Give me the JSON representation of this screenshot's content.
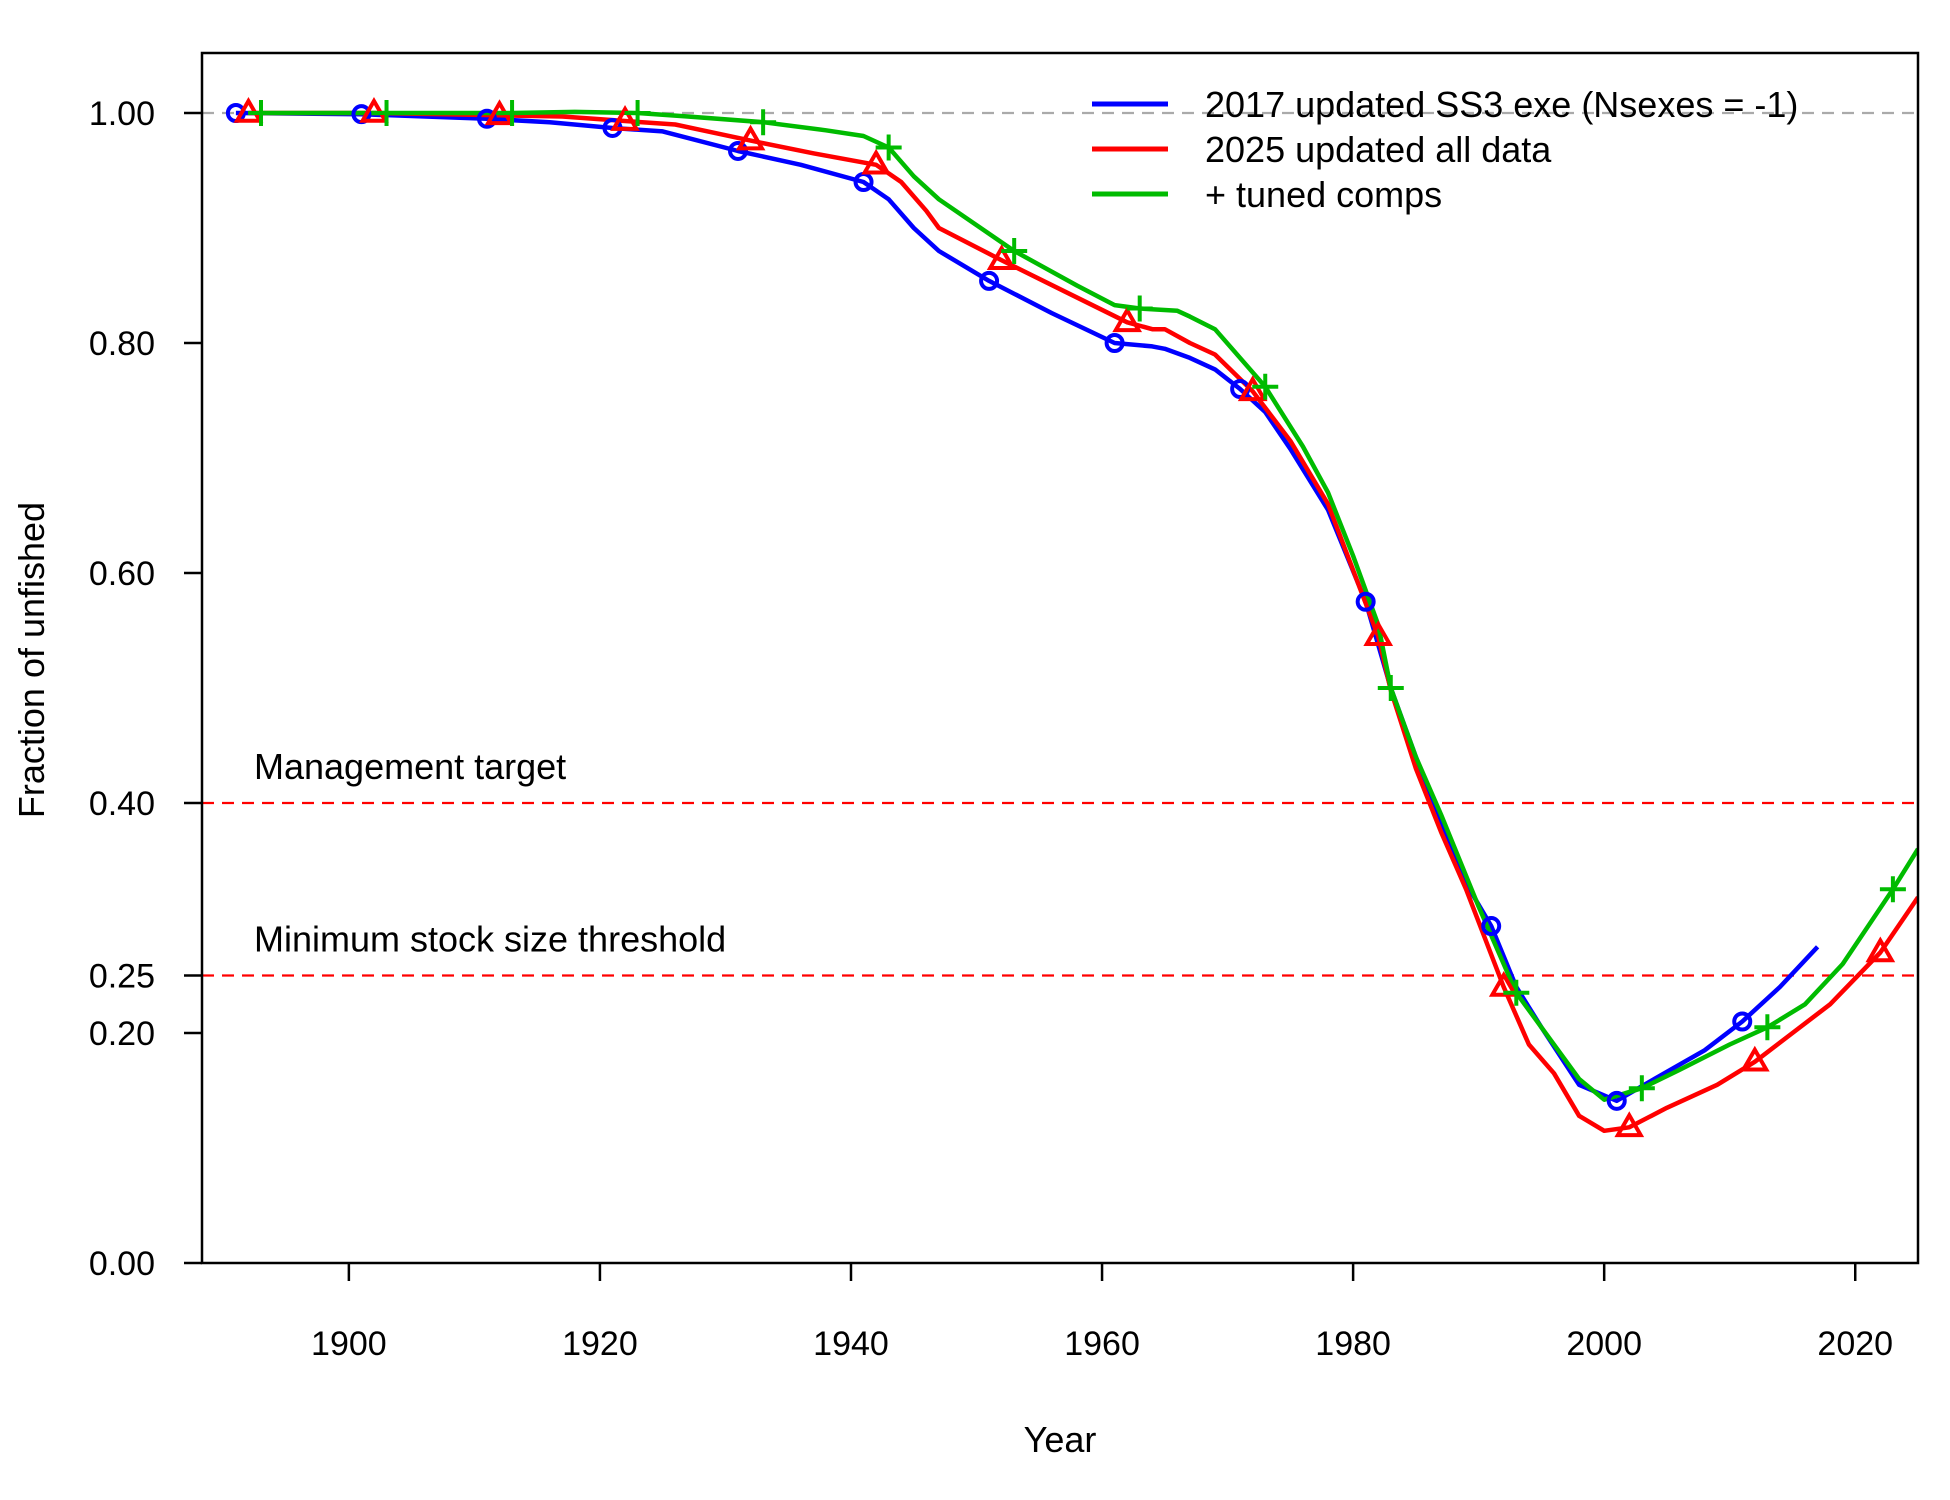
{
  "chart_data": {
    "type": "line",
    "title": "",
    "xlabel": "Year",
    "ylabel": "Fraction of unfished",
    "xlim": [
      1890,
      2025
    ],
    "ylim": [
      0,
      1.0
    ],
    "x_ticks": [
      1900,
      1920,
      1940,
      1960,
      1980,
      2000,
      2020
    ],
    "y_ticks": [
      0.0,
      0.2,
      0.25,
      0.4,
      0.6,
      0.8,
      1.0
    ],
    "y_tick_labels": [
      "0.00",
      "0.20",
      "0.25",
      "0.40",
      "0.60",
      "0.80",
      "1.00"
    ],
    "grid": false,
    "legend_position": "top-right",
    "reference_lines": [
      {
        "y": 1.0,
        "color": "#aaaaaa",
        "style": "dashed",
        "label": ""
      },
      {
        "y": 0.4,
        "color": "#ff0000",
        "style": "dashed",
        "label": "Management target"
      },
      {
        "y": 0.25,
        "color": "#ff0000",
        "style": "dashed",
        "label": "Minimum stock size threshold"
      }
    ],
    "series": [
      {
        "name": "2017 updated SS3 exe (Nsexes = -1)",
        "color": "#0000ff",
        "marker": "circle",
        "x": [
          1891,
          1901,
          1911,
          1916,
          1921,
          1925,
          1931,
          1936,
          1941,
          1943,
          1945,
          1947,
          1951,
          1956,
          1961,
          1964,
          1965,
          1967,
          1969,
          1971,
          1973,
          1975,
          1978,
          1981,
          1983,
          1985,
          1987,
          1989,
          1991,
          1993,
          1995,
          1998,
          2001,
          2004,
          2008,
          2011,
          2014,
          2017
        ],
        "y": [
          1.0,
          0.999,
          0.995,
          0.992,
          0.987,
          0.984,
          0.967,
          0.955,
          0.94,
          0.925,
          0.9,
          0.88,
          0.854,
          0.826,
          0.8,
          0.797,
          0.795,
          0.787,
          0.777,
          0.76,
          0.74,
          0.708,
          0.655,
          0.575,
          0.5,
          0.44,
          0.385,
          0.33,
          0.293,
          0.24,
          0.205,
          0.155,
          0.141,
          0.16,
          0.185,
          0.21,
          0.24,
          0.275
        ]
      },
      {
        "name": "2025 updated all data",
        "color": "#ff0000",
        "marker": "triangle",
        "x": [
          1892,
          1902,
          1912,
          1917,
          1922,
          1926,
          1932,
          1937,
          1942,
          1944,
          1946,
          1947,
          1952,
          1957,
          1962,
          1964,
          1965,
          1967,
          1969,
          1972,
          1975,
          1978,
          1982,
          1983,
          1985,
          1987,
          1989,
          1992,
          1994,
          1996,
          1998,
          2000,
          2002,
          2005,
          2009,
          2012,
          2015,
          2018,
          2022,
          2025
        ],
        "y": [
          1.0,
          1.0,
          0.998,
          0.997,
          0.993,
          0.99,
          0.976,
          0.965,
          0.955,
          0.94,
          0.915,
          0.9,
          0.872,
          0.845,
          0.818,
          0.812,
          0.812,
          0.8,
          0.79,
          0.758,
          0.715,
          0.66,
          0.545,
          0.498,
          0.43,
          0.375,
          0.325,
          0.24,
          0.19,
          0.165,
          0.128,
          0.115,
          0.118,
          0.135,
          0.155,
          0.175,
          0.2,
          0.225,
          0.27,
          0.318
        ]
      },
      {
        "name": "+ tuned comps",
        "color": "#00bb00",
        "marker": "plus",
        "x": [
          1893,
          1903,
          1913,
          1918,
          1923,
          1927,
          1933,
          1938,
          1941,
          1943,
          1945,
          1947,
          1953,
          1958,
          1961,
          1963,
          1966,
          1967,
          1969,
          1973,
          1976,
          1978,
          1980,
          1982,
          1983,
          1985,
          1987,
          1990,
          1993,
          1995,
          1998,
          2000,
          2003,
          2006,
          2010,
          2013,
          2016,
          2019,
          2023,
          2025
        ],
        "y": [
          1.0,
          1.0,
          1.0,
          1.001,
          1.0,
          0.997,
          0.992,
          0.985,
          0.98,
          0.97,
          0.945,
          0.925,
          0.88,
          0.85,
          0.833,
          0.83,
          0.828,
          0.823,
          0.812,
          0.762,
          0.71,
          0.67,
          0.615,
          0.555,
          0.5,
          0.44,
          0.39,
          0.31,
          0.235,
          0.205,
          0.16,
          0.142,
          0.152,
          0.168,
          0.19,
          0.205,
          0.225,
          0.26,
          0.325,
          0.36
        ]
      }
    ]
  }
}
